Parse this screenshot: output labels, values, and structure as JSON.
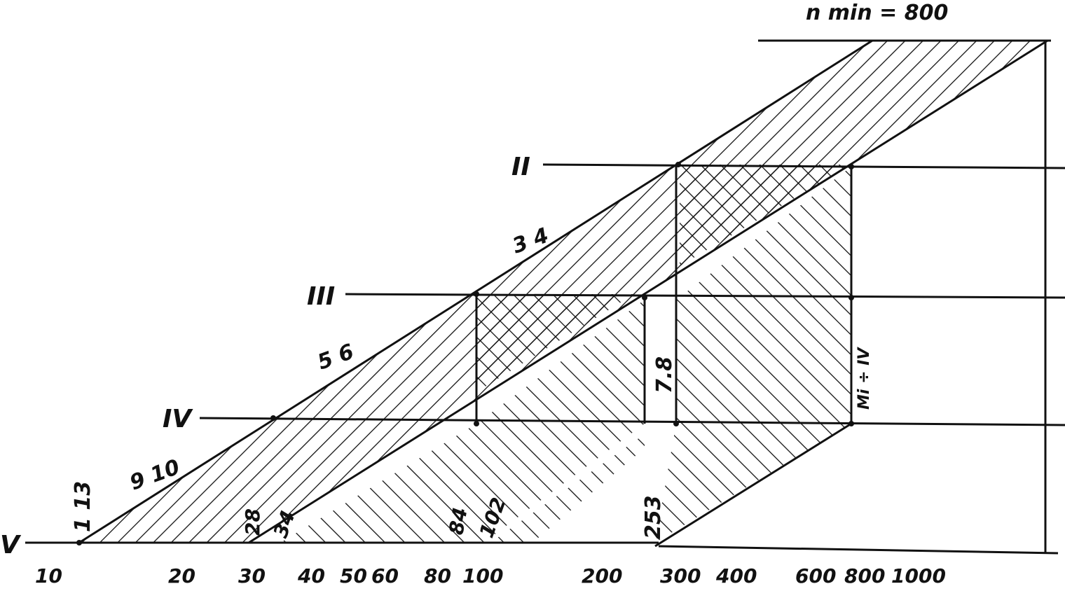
{
  "header": {
    "text": "n min = 800"
  },
  "levels": [
    {
      "roman": "II"
    },
    {
      "roman": "III"
    },
    {
      "roman": "IV"
    },
    {
      "roman": "V"
    }
  ],
  "band_labels": [
    "1 13",
    "9 10",
    "5 6",
    "3 4"
  ],
  "speed_labels": [
    "28",
    "34",
    "84",
    "102",
    "253"
  ],
  "block_label": "7.8",
  "side_label": "Mi ÷ IV",
  "axis_ticks": [
    "10",
    "20",
    "30",
    "40",
    "50",
    "60",
    "80",
    "100",
    "200",
    "300",
    "400",
    "600",
    "800",
    "1000"
  ],
  "colors": {
    "ink": "#111111",
    "paper": "#ffffff"
  }
}
